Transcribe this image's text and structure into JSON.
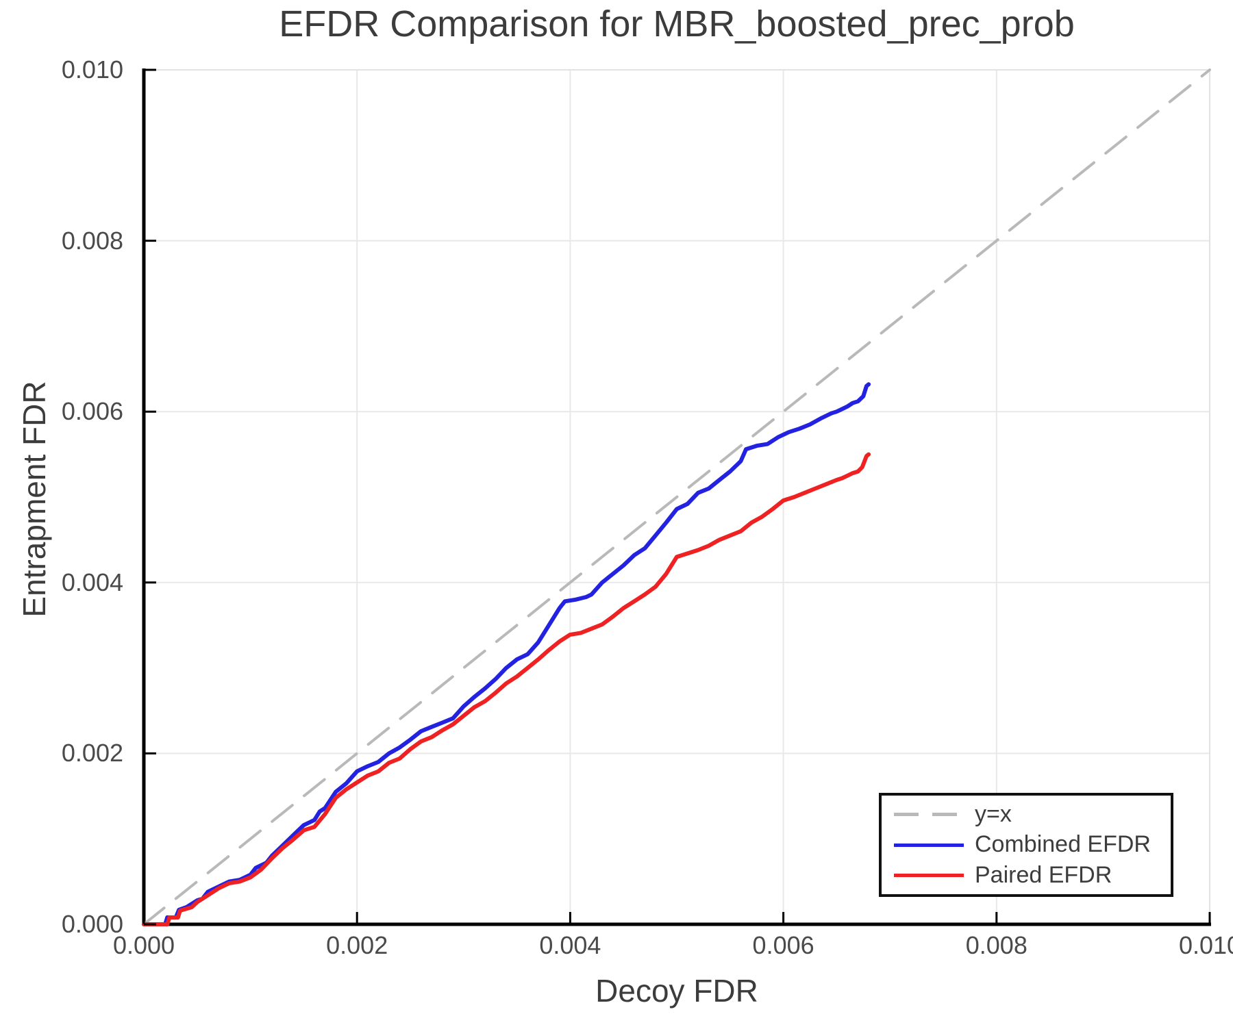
{
  "title": "EFDR Comparison for MBR_boosted_prec_prob",
  "x_axis": {
    "label": "Decoy FDR",
    "tick_labels": [
      "0.000",
      "0.002",
      "0.004",
      "0.006",
      "0.008",
      "0.010"
    ],
    "tick_values": [
      0,
      0.002,
      0.004,
      0.006,
      0.008,
      0.01
    ]
  },
  "y_axis": {
    "label": "Entrapment FDR",
    "tick_labels": [
      "0.000",
      "0.002",
      "0.004",
      "0.006",
      "0.008",
      "0.010"
    ],
    "tick_values": [
      0,
      0.002,
      0.004,
      0.006,
      0.008,
      0.01
    ]
  },
  "legend": {
    "items": [
      {
        "label": "y=x"
      },
      {
        "label": "Combined EFDR"
      },
      {
        "label": "Paired EFDR"
      }
    ]
  },
  "colors": {
    "grid": "#e8e8e8",
    "frame_light": "#e2e2e2",
    "spine": "#000000",
    "text": "#3d3d3d",
    "identity_line": "#b9b9b9",
    "combined": "#2222e0",
    "paired": "#ee2222"
  },
  "chart_data": {
    "type": "line",
    "title": "EFDR Comparison for MBR_boosted_prec_prob",
    "xlabel": "Decoy FDR",
    "ylabel": "Entrapment FDR",
    "xlim": [
      0,
      0.01
    ],
    "ylim": [
      0,
      0.01
    ],
    "grid": true,
    "legend_position": "lower right",
    "series": [
      {
        "id": "yx-line",
        "name": "y=x",
        "color": "#b9b9b9",
        "style": "dashed",
        "width": 4,
        "points": [
          [
            0,
            0
          ],
          [
            0.01,
            0.01
          ]
        ]
      },
      {
        "id": "combined-efdr-line",
        "name": "Combined EFDR",
        "color": "#2222e0",
        "style": "solid",
        "width": 6,
        "points": [
          [
            0.0,
            0.0
          ],
          [
            0.0002,
            0.0
          ],
          [
            0.00022,
            8e-05
          ],
          [
            0.0003,
            8e-05
          ],
          [
            0.00033,
            0.00017
          ],
          [
            0.0004,
            0.0002
          ],
          [
            0.0005,
            0.00028
          ],
          [
            0.00055,
            0.0003
          ],
          [
            0.0006,
            0.00038
          ],
          [
            0.0007,
            0.00044
          ],
          [
            0.0008,
            0.0005
          ],
          [
            0.0009,
            0.00052
          ],
          [
            0.001,
            0.00058
          ],
          [
            0.00105,
            0.00066
          ],
          [
            0.00115,
            0.00072
          ],
          [
            0.0012,
            0.0008
          ],
          [
            0.0013,
            0.00092
          ],
          [
            0.0014,
            0.00104
          ],
          [
            0.0015,
            0.00116
          ],
          [
            0.0016,
            0.00122
          ],
          [
            0.00165,
            0.00132
          ],
          [
            0.0017,
            0.00136
          ],
          [
            0.0018,
            0.00155
          ],
          [
            0.0019,
            0.00165
          ],
          [
            0.002,
            0.00179
          ],
          [
            0.0021,
            0.00185
          ],
          [
            0.0022,
            0.0019
          ],
          [
            0.0023,
            0.002
          ],
          [
            0.0024,
            0.00207
          ],
          [
            0.0025,
            0.00216
          ],
          [
            0.0026,
            0.00226
          ],
          [
            0.0027,
            0.00231
          ],
          [
            0.0028,
            0.00236
          ],
          [
            0.0029,
            0.00241
          ],
          [
            0.003,
            0.00255
          ],
          [
            0.0031,
            0.00266
          ],
          [
            0.0032,
            0.00276
          ],
          [
            0.0033,
            0.00287
          ],
          [
            0.0034,
            0.003
          ],
          [
            0.0035,
            0.0031
          ],
          [
            0.0036,
            0.00316
          ],
          [
            0.0037,
            0.0033
          ],
          [
            0.0038,
            0.0035
          ],
          [
            0.0039,
            0.0037
          ],
          [
            0.00395,
            0.00378
          ],
          [
            0.00405,
            0.0038
          ],
          [
            0.00415,
            0.00383
          ],
          [
            0.0042,
            0.00386
          ],
          [
            0.0043,
            0.004
          ],
          [
            0.0044,
            0.0041
          ],
          [
            0.0045,
            0.0042
          ],
          [
            0.0046,
            0.00432
          ],
          [
            0.0047,
            0.0044
          ],
          [
            0.0048,
            0.00455
          ],
          [
            0.0049,
            0.0047
          ],
          [
            0.005,
            0.00486
          ],
          [
            0.0051,
            0.00492
          ],
          [
            0.0052,
            0.00505
          ],
          [
            0.0053,
            0.0051
          ],
          [
            0.0054,
            0.0052
          ],
          [
            0.0055,
            0.0053
          ],
          [
            0.0056,
            0.00542
          ],
          [
            0.00565,
            0.00556
          ],
          [
            0.00575,
            0.0056
          ],
          [
            0.00585,
            0.00562
          ],
          [
            0.00595,
            0.0057
          ],
          [
            0.00605,
            0.00576
          ],
          [
            0.00615,
            0.0058
          ],
          [
            0.00625,
            0.00585
          ],
          [
            0.00635,
            0.00592
          ],
          [
            0.00645,
            0.00598
          ],
          [
            0.0065,
            0.006
          ],
          [
            0.00655,
            0.00603
          ],
          [
            0.0066,
            0.00606
          ],
          [
            0.00665,
            0.0061
          ],
          [
            0.0067,
            0.00612
          ],
          [
            0.00675,
            0.00618
          ],
          [
            0.00678,
            0.0063
          ],
          [
            0.0068,
            0.00632
          ]
        ]
      },
      {
        "id": "paired-efdr-line",
        "name": "Paired EFDR",
        "color": "#ee2222",
        "style": "solid",
        "width": 6,
        "points": [
          [
            0.0,
            0.0
          ],
          [
            0.00022,
            0.0
          ],
          [
            0.00024,
            8e-05
          ],
          [
            0.00032,
            8e-05
          ],
          [
            0.00034,
            0.00016
          ],
          [
            0.00045,
            0.0002
          ],
          [
            0.0005,
            0.00026
          ],
          [
            0.0006,
            0.00034
          ],
          [
            0.0007,
            0.00042
          ],
          [
            0.0008,
            0.00048
          ],
          [
            0.0009,
            0.0005
          ],
          [
            0.001,
            0.00055
          ],
          [
            0.0011,
            0.00064
          ],
          [
            0.0012,
            0.00077
          ],
          [
            0.0013,
            0.00089
          ],
          [
            0.0014,
            0.00099
          ],
          [
            0.0015,
            0.0011
          ],
          [
            0.0016,
            0.00114
          ],
          [
            0.0017,
            0.00129
          ],
          [
            0.0018,
            0.00148
          ],
          [
            0.0019,
            0.00158
          ],
          [
            0.002,
            0.00166
          ],
          [
            0.0021,
            0.00174
          ],
          [
            0.0022,
            0.00179
          ],
          [
            0.0023,
            0.00189
          ],
          [
            0.0024,
            0.00194
          ],
          [
            0.0025,
            0.00205
          ],
          [
            0.0026,
            0.00214
          ],
          [
            0.0027,
            0.00219
          ],
          [
            0.0028,
            0.00227
          ],
          [
            0.0029,
            0.00234
          ],
          [
            0.003,
            0.00244
          ],
          [
            0.0031,
            0.00254
          ],
          [
            0.0032,
            0.00261
          ],
          [
            0.0033,
            0.00271
          ],
          [
            0.0034,
            0.00282
          ],
          [
            0.0035,
            0.0029
          ],
          [
            0.0036,
            0.003
          ],
          [
            0.0037,
            0.0031
          ],
          [
            0.0038,
            0.00321
          ],
          [
            0.0039,
            0.00331
          ],
          [
            0.004,
            0.00339
          ],
          [
            0.0041,
            0.00341
          ],
          [
            0.0042,
            0.00346
          ],
          [
            0.0043,
            0.00351
          ],
          [
            0.0044,
            0.0036
          ],
          [
            0.0045,
            0.0037
          ],
          [
            0.0046,
            0.00378
          ],
          [
            0.0047,
            0.00386
          ],
          [
            0.0048,
            0.00395
          ],
          [
            0.0049,
            0.0041
          ],
          [
            0.005,
            0.0043
          ],
          [
            0.0051,
            0.00434
          ],
          [
            0.0052,
            0.00438
          ],
          [
            0.0053,
            0.00443
          ],
          [
            0.0054,
            0.0045
          ],
          [
            0.0055,
            0.00455
          ],
          [
            0.0056,
            0.0046
          ],
          [
            0.0057,
            0.0047
          ],
          [
            0.0058,
            0.00477
          ],
          [
            0.0059,
            0.00486
          ],
          [
            0.006,
            0.00496
          ],
          [
            0.0061,
            0.005
          ],
          [
            0.0062,
            0.00505
          ],
          [
            0.0063,
            0.0051
          ],
          [
            0.0064,
            0.00515
          ],
          [
            0.0065,
            0.0052
          ],
          [
            0.00655,
            0.00522
          ],
          [
            0.0066,
            0.00525
          ],
          [
            0.00665,
            0.00528
          ],
          [
            0.0067,
            0.0053
          ],
          [
            0.00674,
            0.00535
          ],
          [
            0.00678,
            0.00548
          ],
          [
            0.0068,
            0.0055
          ]
        ]
      }
    ]
  }
}
